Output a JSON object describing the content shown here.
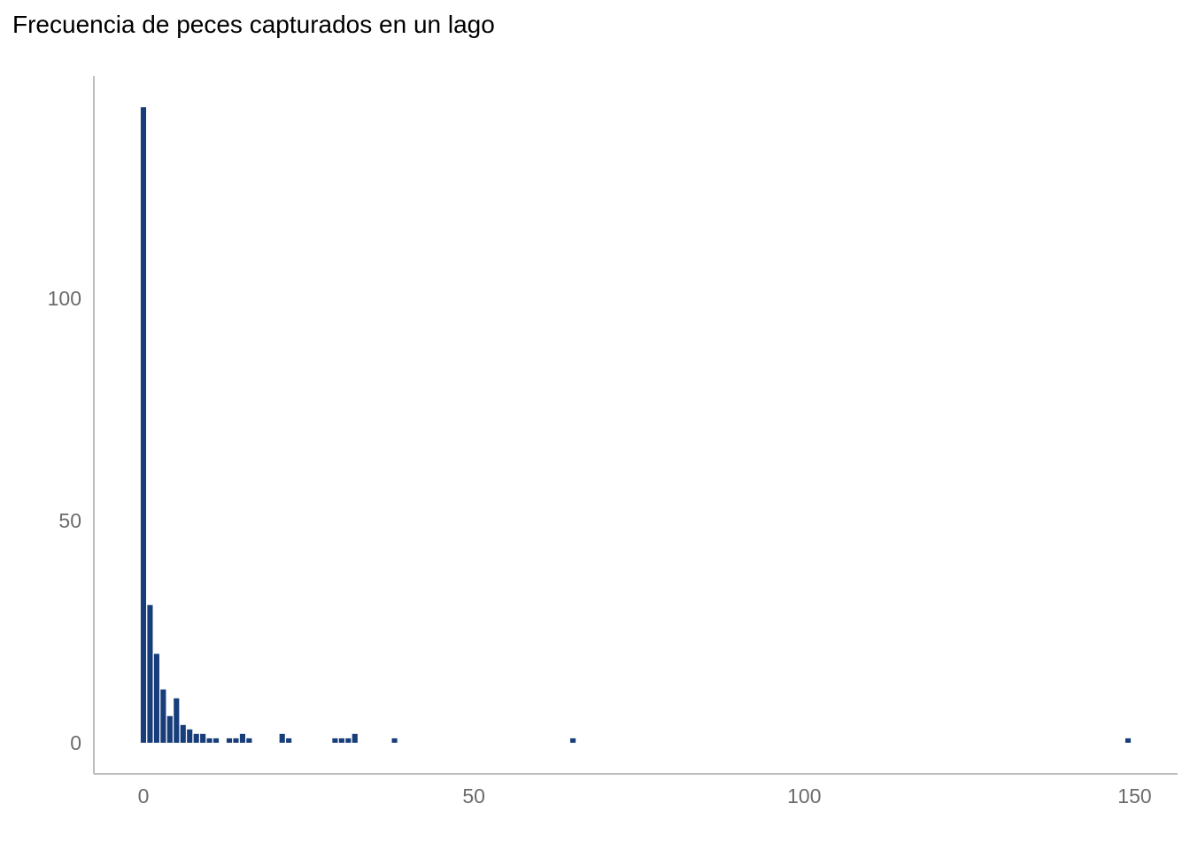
{
  "chart_data": {
    "type": "bar",
    "title": "Frecuencia de peces capturados en un lago",
    "xlabel": "",
    "ylabel": "",
    "xlim": [
      -7.5,
      156.5
    ],
    "ylim": [
      -7,
      150
    ],
    "x_ticks": [
      0,
      50,
      100,
      150
    ],
    "y_ticks": [
      0,
      50,
      100
    ],
    "bar_color": "#173D7A",
    "grid": false,
    "legend": "none",
    "x": [
      0,
      1,
      2,
      3,
      4,
      5,
      6,
      7,
      8,
      9,
      10,
      11,
      13,
      14,
      15,
      16,
      21,
      22,
      29,
      30,
      31,
      32,
      38,
      65,
      149
    ],
    "values": [
      143,
      31,
      20,
      12,
      6,
      10,
      4,
      3,
      2,
      2,
      1,
      1,
      1,
      1,
      2,
      1,
      2,
      1,
      1,
      1,
      1,
      2,
      1,
      1,
      1
    ]
  }
}
